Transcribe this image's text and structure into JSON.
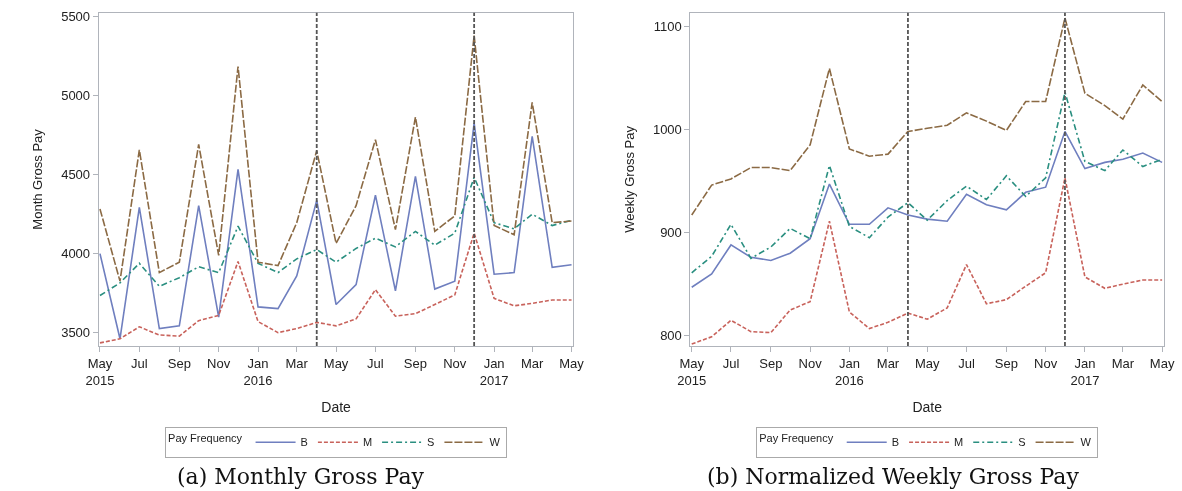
{
  "chart_data": [
    {
      "type": "line",
      "title": "(a) Monthly Gross Pay",
      "xlabel": "Date",
      "ylabel": "Month Gross Pay",
      "legend_title": "Pay Frequency",
      "legend": "bottom",
      "x": [
        "2015-05",
        "2015-06",
        "2015-07",
        "2015-08",
        "2015-09",
        "2015-10",
        "2015-11",
        "2015-12",
        "2016-01",
        "2016-02",
        "2016-03",
        "2016-04",
        "2016-05",
        "2016-06",
        "2016-07",
        "2016-08",
        "2016-09",
        "2016-10",
        "2016-11",
        "2016-12",
        "2017-01",
        "2017-02",
        "2017-03",
        "2017-04",
        "2017-05"
      ],
      "xlim": [
        "2015-04-29",
        "2017-05-04"
      ],
      "xticks": [
        {
          "value": "2015-05",
          "label": "May\n2015"
        },
        {
          "value": "2015-07",
          "label": "Jul"
        },
        {
          "value": "2015-09",
          "label": "Sep"
        },
        {
          "value": "2015-11",
          "label": "Nov"
        },
        {
          "value": "2016-01",
          "label": "Jan\n2016"
        },
        {
          "value": "2016-03",
          "label": "Mar"
        },
        {
          "value": "2016-05",
          "label": "May"
        },
        {
          "value": "2016-07",
          "label": "Jul"
        },
        {
          "value": "2016-09",
          "label": "Sep"
        },
        {
          "value": "2016-11",
          "label": "Nov"
        },
        {
          "value": "2017-01",
          "label": "Jan\n2017"
        },
        {
          "value": "2017-03",
          "label": "Mar"
        },
        {
          "value": "2017-05",
          "label": "May"
        }
      ],
      "ylim": [
        3415,
        5525
      ],
      "yticks": [
        3500,
        4000,
        4500,
        5000,
        5500
      ],
      "series": [
        {
          "name": "B",
          "color": "#6f7fbf",
          "line_style": "solid",
          "values": [
            4000,
            3461,
            4293,
            3526,
            3543,
            4304,
            3598,
            4533,
            3663,
            3652,
            3859,
            4337,
            3678,
            3804,
            4370,
            3765,
            4489,
            3776,
            3826,
            4826,
            3870,
            3880,
            4743,
            3913,
            3930
          ]
        },
        {
          "name": "M",
          "color": "#c8625b",
          "line_style": "dashed",
          "values": [
            3435,
            3461,
            3537,
            3485,
            3478,
            3576,
            3609,
            3950,
            3570,
            3500,
            3526,
            3565,
            3543,
            3587,
            3772,
            3604,
            3620,
            3678,
            3739,
            4130,
            3717,
            3670,
            3685,
            3707,
            3707
          ]
        },
        {
          "name": "S",
          "color": "#2a8f80",
          "line_style": "dashdot",
          "values": [
            3735,
            3815,
            3939,
            3793,
            3848,
            3917,
            3880,
            4174,
            3939,
            3880,
            3967,
            4026,
            3946,
            4033,
            4098,
            4043,
            4141,
            4054,
            4130,
            4483,
            4196,
            4157,
            4250,
            4178,
            4211
          ]
        },
        {
          "name": "W",
          "color": "#8b6a44",
          "line_style": "longdash",
          "values": [
            4283,
            3826,
            4657,
            3880,
            3946,
            4691,
            3989,
            5185,
            3946,
            3924,
            4196,
            4652,
            4065,
            4304,
            4722,
            4152,
            4865,
            4141,
            4239,
            5380,
            4178,
            4120,
            4957,
            4196,
            4207
          ]
        }
      ],
      "ref_lines": [
        {
          "axis": "x",
          "value": "2016-04",
          "label": null,
          "color": "#555555",
          "line_style": "dashed"
        },
        {
          "axis": "x",
          "value": "2016-12",
          "label": null,
          "color": "#555555",
          "line_style": "dashed"
        }
      ]
    },
    {
      "type": "line",
      "title": "(b) Normalized Weekly Gross Pay",
      "xlabel": "Date",
      "ylabel": "Weekly Gross Pay",
      "legend_title": "Pay Frequency",
      "legend": "bottom",
      "x": [
        "2015-05",
        "2015-06",
        "2015-07",
        "2015-08",
        "2015-09",
        "2015-10",
        "2015-11",
        "2015-12",
        "2016-01",
        "2016-02",
        "2016-03",
        "2016-04",
        "2016-05",
        "2016-06",
        "2016-07",
        "2016-08",
        "2016-09",
        "2016-10",
        "2016-11",
        "2016-12",
        "2017-01",
        "2017-02",
        "2017-03",
        "2017-04",
        "2017-05"
      ],
      "xlim": [
        "2015-04-29",
        "2017-05-04"
      ],
      "xticks": [
        {
          "value": "2015-05",
          "label": "May\n2015"
        },
        {
          "value": "2015-07",
          "label": "Jul"
        },
        {
          "value": "2015-09",
          "label": "Sep"
        },
        {
          "value": "2015-11",
          "label": "Nov"
        },
        {
          "value": "2016-01",
          "label": "Jan\n2016"
        },
        {
          "value": "2016-03",
          "label": "Mar"
        },
        {
          "value": "2016-05",
          "label": "May"
        },
        {
          "value": "2016-07",
          "label": "Jul"
        },
        {
          "value": "2016-09",
          "label": "Sep"
        },
        {
          "value": "2016-11",
          "label": "Nov"
        },
        {
          "value": "2017-01",
          "label": "Jan\n2017"
        },
        {
          "value": "2017-03",
          "label": "Mar"
        },
        {
          "value": "2017-05",
          "label": "May"
        }
      ],
      "ylim": [
        790,
        1113
      ],
      "yticks": [
        800,
        900,
        1000,
        1100
      ],
      "series": [
        {
          "name": "B",
          "color": "#6f7fbf",
          "line_style": "solid",
          "values": [
            847,
            860,
            888,
            876,
            873,
            880,
            894,
            947,
            908,
            908,
            924,
            917,
            913,
            911,
            937,
            927,
            922,
            939,
            944,
            998,
            962,
            968,
            971,
            977,
            968
          ]
        },
        {
          "name": "M",
          "color": "#c8625b",
          "line_style": "dashed",
          "values": [
            792,
            799,
            815,
            804,
            803,
            825,
            833,
            911,
            823,
            807,
            813,
            822,
            816,
            827,
            869,
            831,
            835,
            848,
            861,
            953,
            857,
            846,
            850,
            854,
            854
          ]
        },
        {
          "name": "S",
          "color": "#2a8f80",
          "line_style": "dashdot",
          "values": [
            861,
            877,
            908,
            875,
            886,
            904,
            894,
            965,
            906,
            895,
            915,
            929,
            912,
            931,
            945,
            932,
            955,
            935,
            953,
            1036,
            969,
            960,
            980,
            964,
            971
          ]
        },
        {
          "name": "W",
          "color": "#8b6a44",
          "line_style": "longdash",
          "values": [
            917,
            946,
            952,
            963,
            963,
            960,
            985,
            1059,
            981,
            974,
            976,
            998,
            1001,
            1004,
            1016,
            1008,
            999,
            1027,
            1027,
            1108,
            1035,
            1023,
            1010,
            1043,
            1027
          ]
        }
      ],
      "ref_lines": [
        {
          "axis": "x",
          "value": "2016-04",
          "label": null,
          "color": "#555555",
          "line_style": "dashed"
        },
        {
          "axis": "x",
          "value": "2016-12",
          "label": null,
          "color": "#555555",
          "line_style": "dashed"
        }
      ]
    }
  ]
}
